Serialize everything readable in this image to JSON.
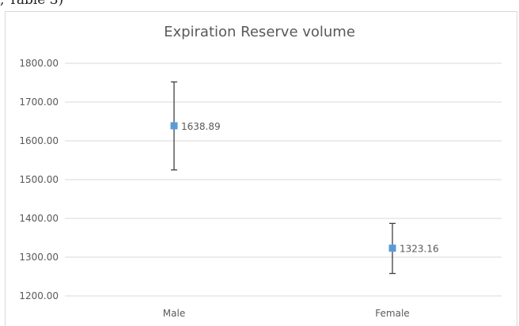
{
  "header_fragment": ", Table 3)",
  "chart_data": {
    "type": "scatter",
    "title": "Expiration Reserve volume",
    "xlabel": "",
    "ylabel": "",
    "categories": [
      "Male",
      "Female"
    ],
    "series": [
      {
        "values": [
          1638.89,
          1323.16
        ],
        "error_low": [
          1525,
          1258
        ],
        "error_high": [
          1752,
          1387
        ],
        "data_labels": [
          "1638.89",
          "1323.16"
        ],
        "color": "#5b9bd5"
      }
    ],
    "ylim": [
      1200,
      1800
    ],
    "yticks": [
      1200,
      1300,
      1400,
      1500,
      1600,
      1700,
      1800
    ],
    "ytick_labels": [
      "1200.00",
      "1300.00",
      "1400.00",
      "1500.00",
      "1600.00",
      "1700.00",
      "1800.00"
    ],
    "grid": true,
    "legend": "none",
    "colors": {
      "marker": "#5b9bd5",
      "error_bar": "#404040",
      "grid": "#d9d9d9",
      "text": "#595959"
    }
  }
}
